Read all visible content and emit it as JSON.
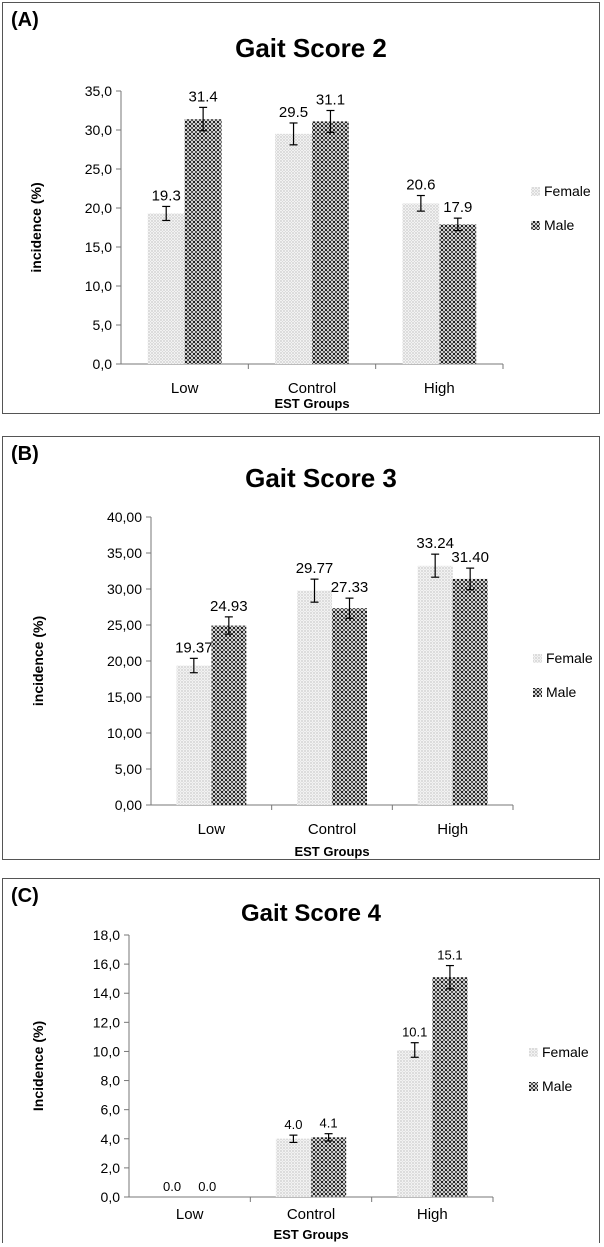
{
  "chart_data": [
    {
      "panel": "(A)",
      "type": "bar",
      "title": "Gait Score 2",
      "xlabel": "EST Groups",
      "ylabel": "incidence (%)",
      "categories": [
        "Low",
        "Control",
        "High"
      ],
      "ylim": [
        0,
        35
      ],
      "yticks": [
        "0,0",
        "5,0",
        "10,0",
        "15,0",
        "20,0",
        "25,0",
        "30,0",
        "35,0"
      ],
      "series": [
        {
          "name": "Female",
          "values": [
            19.3,
            29.5,
            20.6
          ],
          "labels": [
            "19.3",
            "29.5",
            "20.6"
          ],
          "errors": [
            0.9,
            1.4,
            1.0
          ]
        },
        {
          "name": "Male",
          "values": [
            31.4,
            31.1,
            17.9
          ],
          "labels": [
            "31.4",
            "31.1",
            "17.9"
          ],
          "errors": [
            1.5,
            1.4,
            0.8
          ]
        }
      ],
      "legend": "right",
      "colors": {
        "female": "#d8d8d8",
        "male": "#555555"
      }
    },
    {
      "panel": "(B)",
      "type": "bar",
      "title": "Gait Score 3",
      "xlabel": "EST Groups",
      "ylabel": "incidence (%)",
      "categories": [
        "Low",
        "Control",
        "High"
      ],
      "ylim": [
        0,
        40
      ],
      "yticks": [
        "0,00",
        "5,00",
        "10,00",
        "15,00",
        "20,00",
        "25,00",
        "30,00",
        "35,00",
        "40,00"
      ],
      "series": [
        {
          "name": "Female",
          "values": [
            19.37,
            29.77,
            33.24
          ],
          "labels": [
            "19.37",
            "29.77",
            "33.24"
          ],
          "errors": [
            1.0,
            1.6,
            1.6
          ]
        },
        {
          "name": "Male",
          "values": [
            24.93,
            27.33,
            31.4
          ],
          "labels": [
            "24.93",
            "27.33",
            "31.40"
          ],
          "errors": [
            1.2,
            1.4,
            1.5
          ]
        }
      ],
      "legend": "right",
      "colors": {
        "female": "#e2e2e2",
        "male": "#555555"
      }
    },
    {
      "panel": "(C)",
      "type": "bar",
      "title": "Gait Score 4",
      "xlabel": "EST Groups",
      "ylabel": "Incidence (%)",
      "categories": [
        "Low",
        "Control",
        "High"
      ],
      "ylim": [
        0,
        18
      ],
      "yticks": [
        "0,0",
        "2,0",
        "4,0",
        "6,0",
        "8,0",
        "10,0",
        "12,0",
        "14,0",
        "16,0",
        "18,0"
      ],
      "series": [
        {
          "name": "Female",
          "values": [
            0.0,
            4.0,
            10.1
          ],
          "labels": [
            "0.0",
            "4.0",
            "10.1"
          ],
          "errors": [
            0,
            0.25,
            0.5
          ]
        },
        {
          "name": "Male",
          "values": [
            0.0,
            4.1,
            15.1
          ],
          "labels": [
            "0.0",
            "4.1",
            "15.1"
          ],
          "errors": [
            0,
            0.25,
            0.8
          ]
        }
      ],
      "legend": "right",
      "colors": {
        "female": "#e2e2e2",
        "male": "#5a5a5a"
      }
    }
  ]
}
